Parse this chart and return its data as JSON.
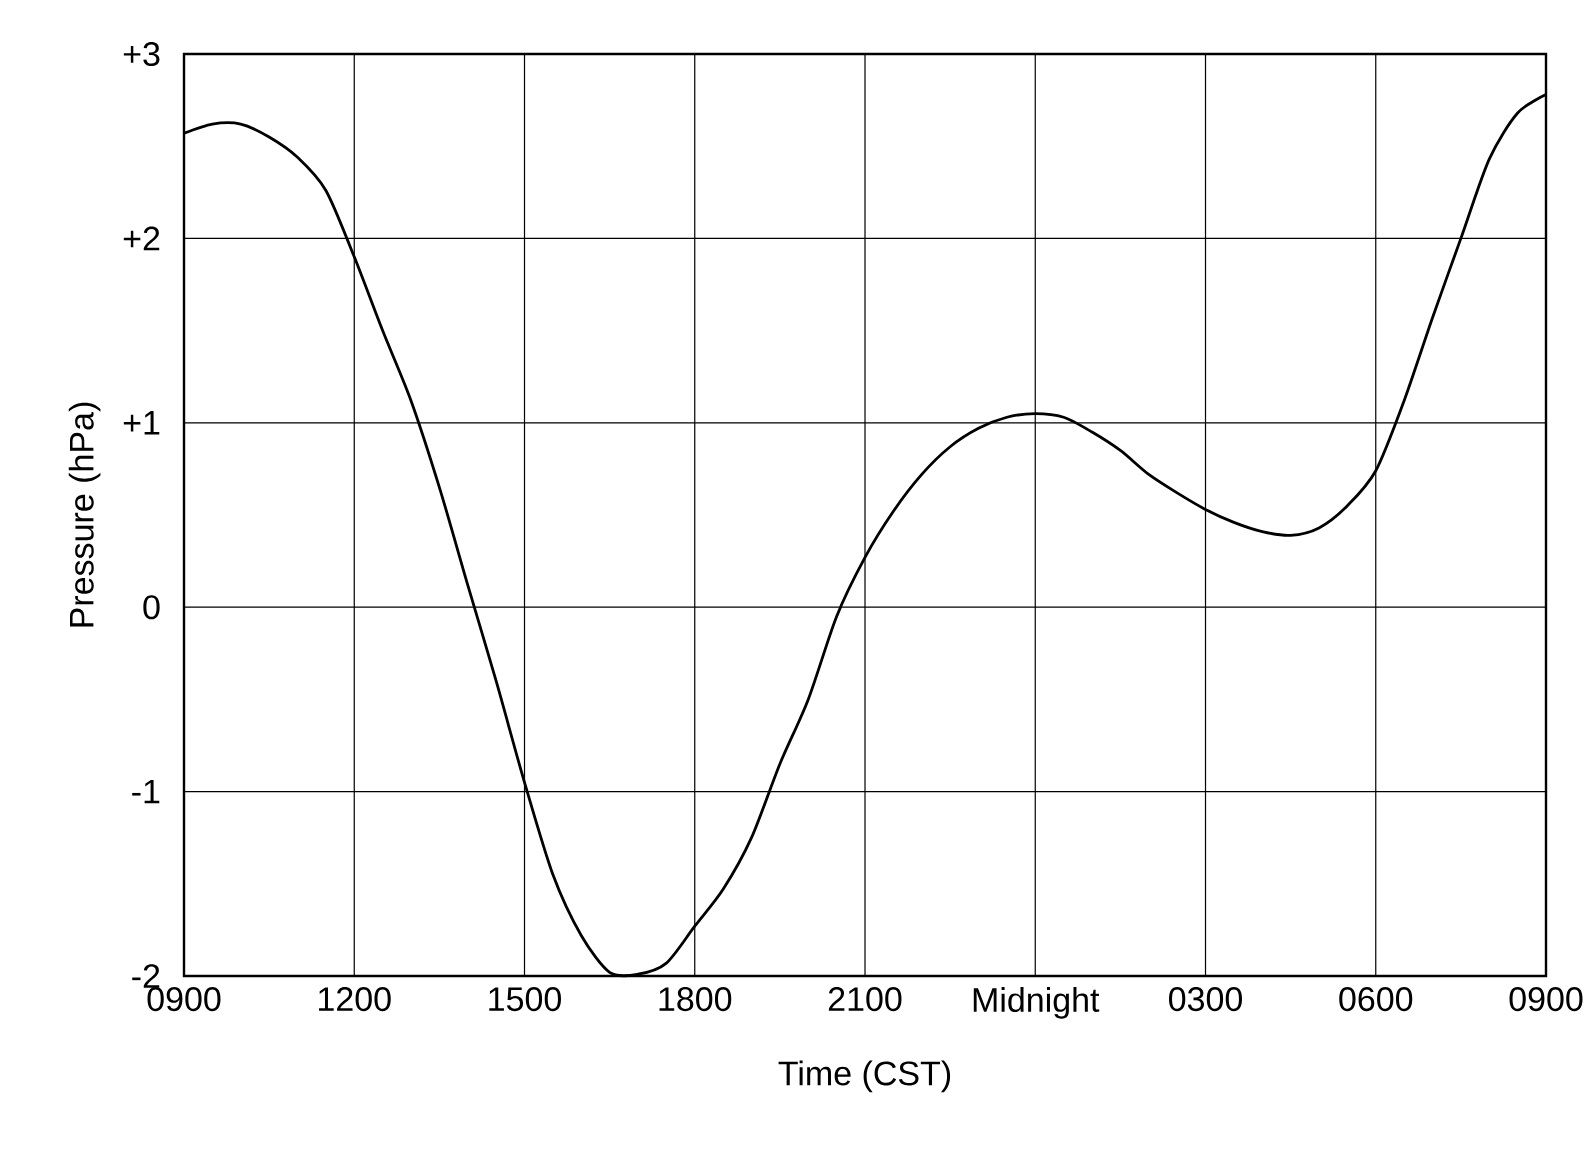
{
  "chart_data": {
    "type": "line",
    "xlabel": "Time (CST)",
    "ylabel": "Pressure (hPa)",
    "color": "#000000",
    "grid": true,
    "categories": [
      "0900",
      null,
      null,
      null,
      null,
      null,
      "1200",
      null,
      null,
      null,
      null,
      null,
      "1500",
      null,
      null,
      null,
      null,
      null,
      "1800",
      null,
      null,
      null,
      null,
      null,
      "2100",
      null,
      null,
      null,
      null,
      null,
      "Midnight",
      null,
      null,
      null,
      null,
      null,
      "0300",
      null,
      null,
      null,
      null,
      null,
      "0600",
      null,
      null,
      null,
      null,
      null,
      "0900"
    ],
    "values": [
      2.57,
      2.62,
      2.62,
      2.55,
      2.44,
      2.26,
      1.9,
      1.5,
      1.12,
      0.65,
      0.12,
      -0.4,
      -0.95,
      -1.45,
      -1.78,
      -1.98,
      -1.99,
      -1.93,
      -1.73,
      -1.53,
      -1.25,
      -0.85,
      -0.5,
      -0.05,
      0.27,
      0.52,
      0.72,
      0.87,
      0.97,
      1.03,
      1.05,
      1.03,
      0.95,
      0.85,
      0.72,
      0.62,
      0.53,
      0.46,
      0.41,
      0.39,
      0.43,
      0.55,
      0.74,
      1.12,
      1.57,
      2.0,
      2.43,
      2.68,
      2.78
    ],
    "ylim": [
      -2,
      3
    ],
    "yticks": [
      -2,
      -1,
      0,
      {
        "value": 1,
        "label": "+1"
      },
      {
        "value": 2,
        "label": "+2"
      },
      {
        "value": 3,
        "label": "+3"
      }
    ]
  }
}
